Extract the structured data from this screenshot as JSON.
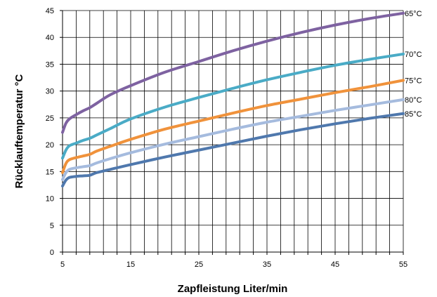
{
  "chart_data": {
    "type": "line",
    "xlabel": "Zapfleistung Liter/min",
    "ylabel": "Rücklauftemperatur °C",
    "xlim": [
      5,
      55
    ],
    "ylim": [
      0,
      45
    ],
    "xticks": [
      5,
      15,
      25,
      35,
      45,
      55
    ],
    "yticks": [
      0,
      5,
      10,
      15,
      20,
      25,
      30,
      35,
      40,
      45
    ],
    "grid": true,
    "legend": "none",
    "series": [
      {
        "name": "65°C",
        "color": "#7e62a1",
        "points": [
          [
            5,
            22.3
          ],
          [
            5.5,
            24.0
          ],
          [
            6,
            24.8
          ],
          [
            7,
            25.6
          ],
          [
            8,
            26.3
          ],
          [
            9,
            26.9
          ],
          [
            10,
            27.7
          ],
          [
            12,
            29.3
          ],
          [
            15,
            31.0
          ],
          [
            20,
            33.5
          ],
          [
            25,
            35.5
          ],
          [
            30,
            37.5
          ],
          [
            35,
            39.3
          ],
          [
            40,
            40.9
          ],
          [
            45,
            42.3
          ],
          [
            50,
            43.5
          ],
          [
            55,
            44.5
          ]
        ]
      },
      {
        "name": "70°C",
        "color": "#4aabc6",
        "points": [
          [
            5,
            17.5
          ],
          [
            5.5,
            19.0
          ],
          [
            6,
            19.8
          ],
          [
            7,
            20.3
          ],
          [
            8,
            20.8
          ],
          [
            9,
            21.2
          ],
          [
            10,
            21.8
          ],
          [
            12,
            23.0
          ],
          [
            15,
            24.8
          ],
          [
            20,
            27.0
          ],
          [
            25,
            28.8
          ],
          [
            30,
            30.5
          ],
          [
            35,
            32.1
          ],
          [
            40,
            33.5
          ],
          [
            45,
            34.8
          ],
          [
            50,
            35.9
          ],
          [
            55,
            36.9
          ]
        ]
      },
      {
        "name": "75°C",
        "color": "#f0923b",
        "points": [
          [
            5,
            14.8
          ],
          [
            5.5,
            16.5
          ],
          [
            6,
            17.2
          ],
          [
            7,
            17.6
          ],
          [
            8,
            17.9
          ],
          [
            9,
            18.2
          ],
          [
            10,
            18.8
          ],
          [
            12,
            19.7
          ],
          [
            15,
            21.0
          ],
          [
            20,
            22.9
          ],
          [
            25,
            24.4
          ],
          [
            30,
            25.9
          ],
          [
            35,
            27.3
          ],
          [
            40,
            28.5
          ],
          [
            45,
            29.7
          ],
          [
            50,
            30.8
          ],
          [
            55,
            32.0
          ]
        ]
      },
      {
        "name": "80°C",
        "color": "#a5bbde",
        "points": [
          [
            5,
            13.5
          ],
          [
            5.5,
            14.8
          ],
          [
            6,
            15.4
          ],
          [
            7,
            15.7
          ],
          [
            8,
            15.9
          ],
          [
            9,
            16.1
          ],
          [
            10,
            16.6
          ],
          [
            12,
            17.4
          ],
          [
            15,
            18.5
          ],
          [
            20,
            20.1
          ],
          [
            25,
            21.5
          ],
          [
            30,
            22.9
          ],
          [
            35,
            24.2
          ],
          [
            40,
            25.3
          ],
          [
            45,
            26.4
          ],
          [
            50,
            27.4
          ],
          [
            55,
            28.4
          ]
        ]
      },
      {
        "name": "85°C",
        "color": "#4f78ad",
        "points": [
          [
            5,
            12.3
          ],
          [
            5.5,
            13.4
          ],
          [
            6,
            13.9
          ],
          [
            7,
            14.1
          ],
          [
            8,
            14.2
          ],
          [
            9,
            14.3
          ],
          [
            10,
            14.8
          ],
          [
            12,
            15.4
          ],
          [
            15,
            16.3
          ],
          [
            20,
            17.7
          ],
          [
            25,
            19.0
          ],
          [
            30,
            20.3
          ],
          [
            35,
            21.6
          ],
          [
            40,
            22.8
          ],
          [
            45,
            23.9
          ],
          [
            50,
            24.9
          ],
          [
            55,
            25.8
          ]
        ]
      }
    ]
  }
}
